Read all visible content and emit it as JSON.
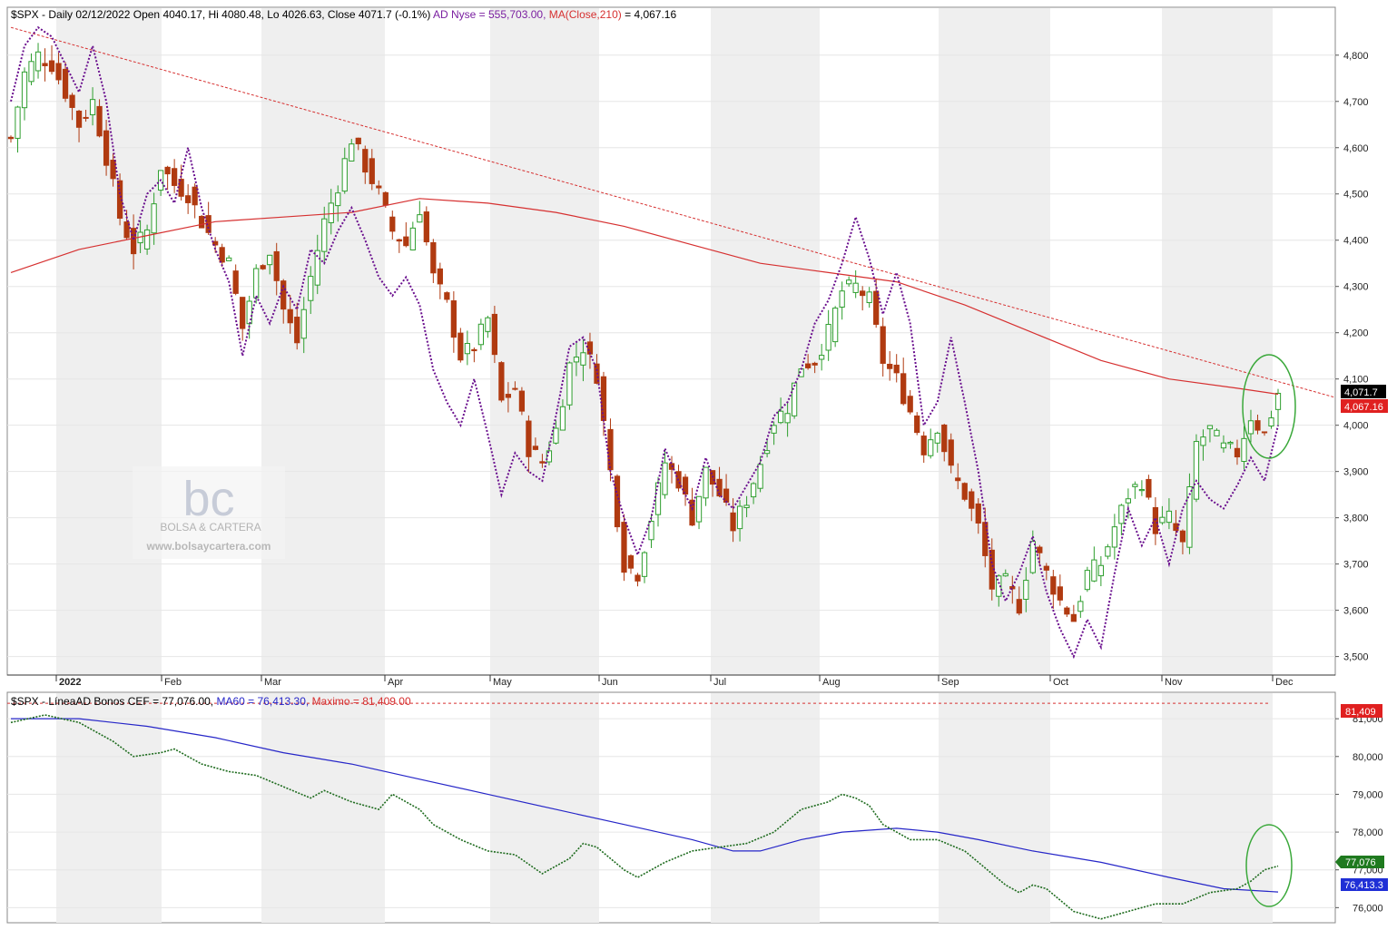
{
  "panel1": {
    "hdr_prefix": "$SPX - Daily 02/12/2022 Open 4040.17, Hi 4080.48, Lo 4026.63, Close 4071.7 (-0.1%) ",
    "hdr_ad": "AD Nyse = 555,703.00, ",
    "hdr_ma": "MA(Close,210)",
    "hdr_ma_val": " = 4,067.16",
    "price_tag": "4,071.7",
    "ma_tag": "4,067.16"
  },
  "panel2": {
    "hdr_prefix": "$SPX - LíneaAD Bonos CEF = 77,076.00, ",
    "hdr_ma": "MA60 = 76,413.30, ",
    "hdr_max": "Maximo = 81,409.00",
    "max_tag": "81,409",
    "line_tag": "77,076",
    "ma_tag": "76,413.3"
  },
  "watermark": {
    "logo": "bc",
    "name": "BOLSA & CARTERA",
    "url": "www.bolsaycartera.com"
  },
  "colors": {
    "up": "#2e9e2e",
    "down": "#b03a10",
    "ad": "#6a0f8e",
    "ma210": "#d63030",
    "trend": "#d63030",
    "cef": "#1e6b1e",
    "ma60": "#2626c8",
    "circle": "#3aa83a"
  },
  "chart_data": [
    {
      "type": "candlestick",
      "ylim": [
        3460,
        4880
      ],
      "y_ticks": [
        "3,500",
        "3,600",
        "3,700",
        "3,800",
        "3,900",
        "4,000",
        "4,100",
        "4,200",
        "4,300",
        "4,400",
        "4,500",
        "4,600",
        "4,700",
        "4,800"
      ],
      "x_labels": [
        "2022",
        "Feb",
        "Mar",
        "Apr",
        "May",
        "Jun",
        "Jul",
        "Aug",
        "Sep",
        "Oct",
        "Nov",
        "Dec"
      ],
      "close_path": [
        [
          0,
          4620
        ],
        [
          2,
          4760
        ],
        [
          4,
          4800
        ],
        [
          6,
          4780
        ],
        [
          8,
          4720
        ],
        [
          10,
          4650
        ],
        [
          12,
          4700
        ],
        [
          14,
          4580
        ],
        [
          16,
          4450
        ],
        [
          18,
          4380
        ],
        [
          20,
          4420
        ],
        [
          22,
          4560
        ],
        [
          24,
          4520
        ],
        [
          26,
          4500
        ],
        [
          28,
          4440
        ],
        [
          30,
          4390
        ],
        [
          32,
          4350
        ],
        [
          34,
          4210
        ],
        [
          36,
          4330
        ],
        [
          38,
          4380
        ],
        [
          40,
          4250
        ],
        [
          42,
          4180
        ],
        [
          44,
          4320
        ],
        [
          46,
          4440
        ],
        [
          48,
          4520
        ],
        [
          50,
          4620
        ],
        [
          52,
          4560
        ],
        [
          54,
          4500
        ],
        [
          56,
          4420
        ],
        [
          58,
          4390
        ],
        [
          60,
          4470
        ],
        [
          62,
          4320
        ],
        [
          64,
          4260
        ],
        [
          66,
          4150
        ],
        [
          68,
          4170
        ],
        [
          70,
          4230
        ],
        [
          72,
          4050
        ],
        [
          74,
          4080
        ],
        [
          76,
          3950
        ],
        [
          78,
          3920
        ],
        [
          80,
          3990
        ],
        [
          82,
          4130
        ],
        [
          84,
          4170
        ],
        [
          86,
          4110
        ],
        [
          88,
          3900
        ],
        [
          90,
          3700
        ],
        [
          92,
          3680
        ],
        [
          94,
          3800
        ],
        [
          96,
          3920
        ],
        [
          98,
          3880
        ],
        [
          100,
          3800
        ],
        [
          102,
          3900
        ],
        [
          104,
          3850
        ],
        [
          106,
          3780
        ],
        [
          108,
          3840
        ],
        [
          110,
          3920
        ],
        [
          112,
          4010
        ],
        [
          114,
          4040
        ],
        [
          116,
          4130
        ],
        [
          118,
          4140
        ],
        [
          120,
          4200
        ],
        [
          122,
          4290
        ],
        [
          124,
          4300
        ],
        [
          126,
          4270
        ],
        [
          128,
          4140
        ],
        [
          130,
          4100
        ],
        [
          132,
          4030
        ],
        [
          134,
          3950
        ],
        [
          136,
          4000
        ],
        [
          138,
          3900
        ],
        [
          140,
          3850
        ],
        [
          142,
          3780
        ],
        [
          144,
          3650
        ],
        [
          146,
          3660
        ],
        [
          148,
          3610
        ],
        [
          150,
          3750
        ],
        [
          152,
          3680
        ],
        [
          154,
          3620
        ],
        [
          156,
          3580
        ],
        [
          158,
          3680
        ],
        [
          160,
          3700
        ],
        [
          162,
          3780
        ],
        [
          164,
          3850
        ],
        [
          166,
          3880
        ],
        [
          168,
          3780
        ],
        [
          170,
          3800
        ],
        [
          172,
          3740
        ],
        [
          174,
          3960
        ],
        [
          176,
          3990
        ],
        [
          178,
          3950
        ],
        [
          180,
          3940
        ],
        [
          182,
          4020
        ],
        [
          184,
          3980
        ],
        [
          186,
          4070
        ]
      ],
      "ad_path": [
        [
          0,
          4700
        ],
        [
          2,
          4820
        ],
        [
          4,
          4860
        ],
        [
          6,
          4840
        ],
        [
          8,
          4780
        ],
        [
          10,
          4720
        ],
        [
          12,
          4820
        ],
        [
          14,
          4700
        ],
        [
          16,
          4500
        ],
        [
          18,
          4400
        ],
        [
          20,
          4500
        ],
        [
          22,
          4530
        ],
        [
          24,
          4480
        ],
        [
          26,
          4600
        ],
        [
          28,
          4470
        ],
        [
          30,
          4380
        ],
        [
          32,
          4310
        ],
        [
          34,
          4150
        ],
        [
          36,
          4280
        ],
        [
          38,
          4220
        ],
        [
          40,
          4300
        ],
        [
          42,
          4250
        ],
        [
          44,
          4380
        ],
        [
          46,
          4350
        ],
        [
          48,
          4420
        ],
        [
          50,
          4470
        ],
        [
          52,
          4400
        ],
        [
          54,
          4320
        ],
        [
          56,
          4280
        ],
        [
          58,
          4320
        ],
        [
          60,
          4260
        ],
        [
          62,
          4120
        ],
        [
          64,
          4050
        ],
        [
          66,
          4000
        ],
        [
          68,
          4100
        ],
        [
          70,
          3980
        ],
        [
          72,
          3850
        ],
        [
          74,
          3940
        ],
        [
          76,
          3900
        ],
        [
          78,
          3880
        ],
        [
          80,
          4020
        ],
        [
          82,
          4170
        ],
        [
          84,
          4190
        ],
        [
          86,
          4120
        ],
        [
          88,
          3900
        ],
        [
          90,
          3800
        ],
        [
          92,
          3720
        ],
        [
          94,
          3800
        ],
        [
          96,
          3950
        ],
        [
          98,
          3880
        ],
        [
          100,
          3820
        ],
        [
          102,
          3930
        ],
        [
          104,
          3850
        ],
        [
          106,
          3820
        ],
        [
          108,
          3870
        ],
        [
          110,
          3920
        ],
        [
          112,
          4020
        ],
        [
          114,
          4050
        ],
        [
          116,
          4120
        ],
        [
          118,
          4220
        ],
        [
          120,
          4270
        ],
        [
          122,
          4350
        ],
        [
          124,
          4450
        ],
        [
          126,
          4360
        ],
        [
          128,
          4240
        ],
        [
          130,
          4330
        ],
        [
          132,
          4220
        ],
        [
          134,
          4000
        ],
        [
          136,
          4050
        ],
        [
          138,
          4190
        ],
        [
          140,
          4050
        ],
        [
          142,
          3900
        ],
        [
          144,
          3700
        ],
        [
          146,
          3620
        ],
        [
          148,
          3680
        ],
        [
          150,
          3760
        ],
        [
          152,
          3640
        ],
        [
          154,
          3560
        ],
        [
          156,
          3500
        ],
        [
          158,
          3580
        ],
        [
          160,
          3520
        ],
        [
          162,
          3680
        ],
        [
          164,
          3820
        ],
        [
          166,
          3740
        ],
        [
          168,
          3800
        ],
        [
          170,
          3700
        ],
        [
          172,
          3820
        ],
        [
          174,
          3880
        ],
        [
          176,
          3840
        ],
        [
          178,
          3820
        ],
        [
          180,
          3870
        ],
        [
          182,
          3930
        ],
        [
          184,
          3880
        ],
        [
          186,
          4000
        ]
      ],
      "ma210": [
        [
          0,
          4330
        ],
        [
          10,
          4380
        ],
        [
          20,
          4410
        ],
        [
          30,
          4440
        ],
        [
          40,
          4450
        ],
        [
          50,
          4460
        ],
        [
          60,
          4490
        ],
        [
          70,
          4480
        ],
        [
          80,
          4460
        ],
        [
          90,
          4430
        ],
        [
          100,
          4390
        ],
        [
          110,
          4350
        ],
        [
          120,
          4330
        ],
        [
          130,
          4310
        ],
        [
          140,
          4260
        ],
        [
          150,
          4200
        ],
        [
          160,
          4140
        ],
        [
          170,
          4100
        ],
        [
          180,
          4080
        ],
        [
          186,
          4067
        ]
      ],
      "trend_line": [
        [
          0,
          4860
        ],
        [
          195,
          4060
        ]
      ],
      "last_close": 4071.7,
      "last_ma210": 4067.16
    },
    {
      "type": "line",
      "ylim": [
        75600,
        81700
      ],
      "y_ticks": [
        "76,000",
        "77,000",
        "78,000",
        "79,000",
        "80,000",
        "81,000"
      ],
      "series": [
        {
          "name": "LíneaAD Bonos CEF",
          "points": [
            [
              0,
              80900
            ],
            [
              5,
              81100
            ],
            [
              10,
              80900
            ],
            [
              15,
              80400
            ],
            [
              18,
              80000
            ],
            [
              22,
              80100
            ],
            [
              24,
              80200
            ],
            [
              28,
              79800
            ],
            [
              32,
              79600
            ],
            [
              36,
              79500
            ],
            [
              40,
              79200
            ],
            [
              44,
              78900
            ],
            [
              46,
              79100
            ],
            [
              50,
              78800
            ],
            [
              54,
              78600
            ],
            [
              56,
              79000
            ],
            [
              60,
              78600
            ],
            [
              62,
              78200
            ],
            [
              66,
              77800
            ],
            [
              70,
              77500
            ],
            [
              74,
              77400
            ],
            [
              78,
              76900
            ],
            [
              82,
              77300
            ],
            [
              84,
              77700
            ],
            [
              86,
              77600
            ],
            [
              90,
              77000
            ],
            [
              92,
              76800
            ],
            [
              96,
              77200
            ],
            [
              100,
              77500
            ],
            [
              104,
              77600
            ],
            [
              108,
              77700
            ],
            [
              112,
              78000
            ],
            [
              116,
              78600
            ],
            [
              120,
              78800
            ],
            [
              122,
              79000
            ],
            [
              124,
              78900
            ],
            [
              126,
              78700
            ],
            [
              128,
              78200
            ],
            [
              132,
              77800
            ],
            [
              136,
              77800
            ],
            [
              140,
              77500
            ],
            [
              144,
              76900
            ],
            [
              146,
              76600
            ],
            [
              148,
              76400
            ],
            [
              150,
              76600
            ],
            [
              152,
              76500
            ],
            [
              154,
              76200
            ],
            [
              156,
              75900
            ],
            [
              158,
              75800
            ],
            [
              160,
              75700
            ],
            [
              164,
              75900
            ],
            [
              168,
              76100
            ],
            [
              172,
              76100
            ],
            [
              176,
              76400
            ],
            [
              180,
              76500
            ],
            [
              182,
              76700
            ],
            [
              184,
              77000
            ],
            [
              186,
              77100
            ]
          ]
        },
        {
          "name": "MA60",
          "points": [
            [
              0,
              81000
            ],
            [
              10,
              81000
            ],
            [
              20,
              80800
            ],
            [
              30,
              80500
            ],
            [
              40,
              80100
            ],
            [
              50,
              79800
            ],
            [
              60,
              79400
            ],
            [
              70,
              79000
            ],
            [
              80,
              78600
            ],
            [
              90,
              78200
            ],
            [
              100,
              77800
            ],
            [
              106,
              77500
            ],
            [
              110,
              77500
            ],
            [
              116,
              77800
            ],
            [
              122,
              78000
            ],
            [
              130,
              78100
            ],
            [
              136,
              78000
            ],
            [
              142,
              77800
            ],
            [
              150,
              77500
            ],
            [
              160,
              77200
            ],
            [
              170,
              76800
            ],
            [
              178,
              76500
            ],
            [
              186,
              76413
            ]
          ]
        }
      ],
      "max_value": 81409,
      "last_value": 77076,
      "last_ma60": 76413.3
    }
  ]
}
